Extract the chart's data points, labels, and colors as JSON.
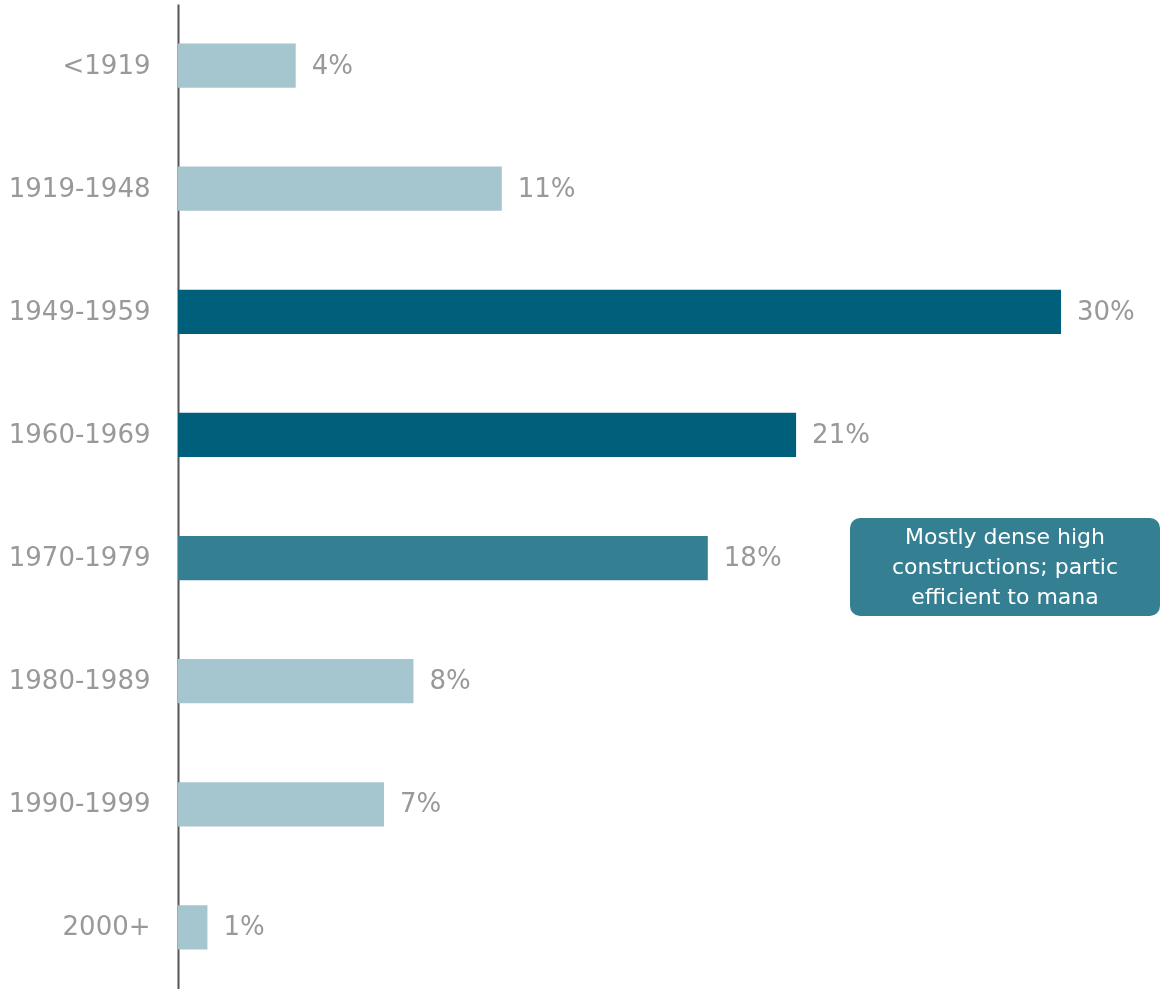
{
  "chart_data": {
    "type": "bar",
    "orientation": "horizontal",
    "value_labels": [
      "4%",
      "11%",
      "30%",
      "21%",
      "18%",
      "8%",
      "7%",
      "1%"
    ],
    "categories": [
      "<1919",
      "1919-1948",
      "1949-1959",
      "1960-1969",
      "1970-1979",
      "1980-1989",
      "1990-1999",
      "2000+"
    ],
    "values": [
      4,
      11,
      30,
      21,
      18,
      8,
      7,
      1
    ],
    "colors": [
      "#a5c6cf",
      "#a5c6cf",
      "#005f7a",
      "#005f7a",
      "#357f92",
      "#a5c6cf",
      "#a5c6cf",
      "#a5c6cf"
    ],
    "annotations": [
      "Mostly dense high",
      "constructions; partic",
      "efficient to mana"
    ]
  }
}
